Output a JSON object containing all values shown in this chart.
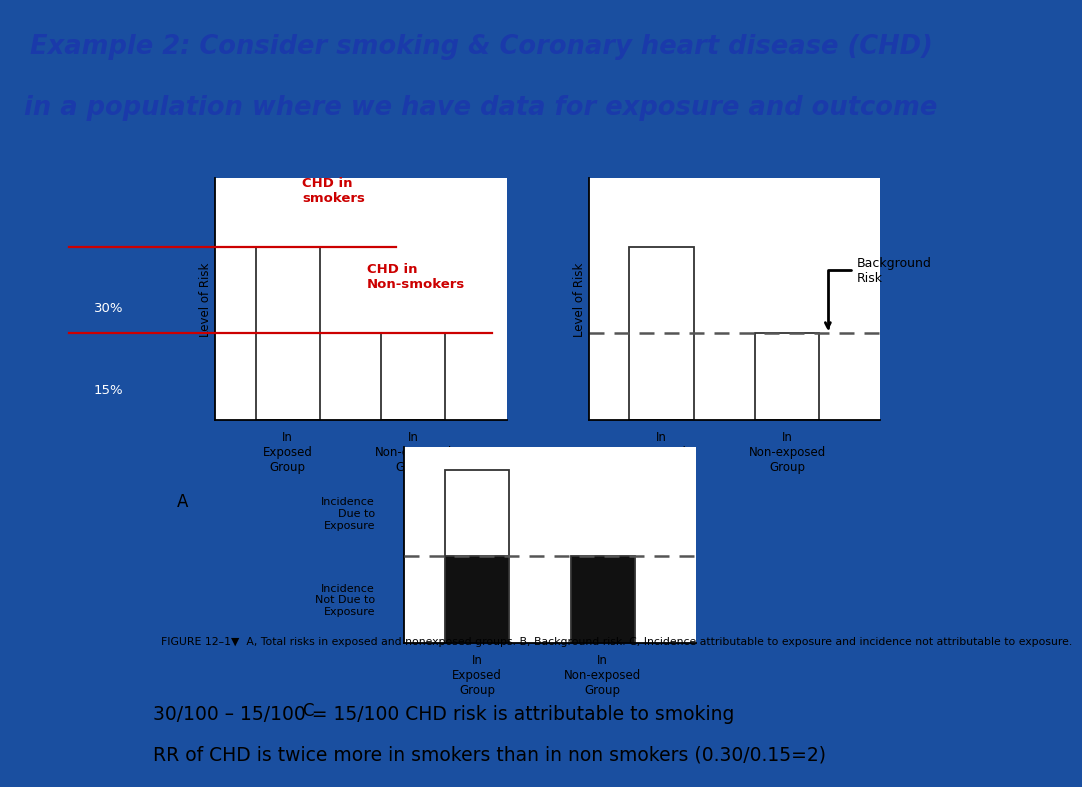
{
  "title_line1": "Example 2: Consider smoking & Coronary heart disease (CHD)",
  "title_line2": "in a population where we have data for exposure and outcome",
  "title_color": "#1a3aaa",
  "title_fontsize": 18.5,
  "bg_color": "#1a4fa0",
  "bottom_text1": "30/100 – 15/100 = 15/100 CHD risk is attributable to smoking",
  "bottom_text2": "RR of CHD is twice more in smokers than in non smokers (0.30/0.15=2)",
  "bottom_bg": "#c5d8f0",
  "figure_caption": "FIGURE 12–1▼  A, Total risks in exposed and nonexposed groups. B, Background risk. C, Incidence attributable to exposure and incidence not attributable to exposure.",
  "red_color": "#cc0000",
  "dash_color": "#555555",
  "bar_edge": "#333333",
  "bar_light": "#ffffff",
  "bar_dark": "#111111",
  "exposed_label": "In\nExposed\nGroup",
  "nonexposed_label": "In\nNon-exposed\nGroup",
  "ylabel_risk": "Level of Risk",
  "label_30pct": "30%",
  "label_15pct": "15%",
  "label_chd_smokers": "CHD in\nsmokers",
  "label_chd_nonsmokers": "CHD in\nNon-smokers",
  "label_bg_risk": "Background\nRisk",
  "label_inc_exp": "Incidence\nDue to\nExposure",
  "label_inc_noexp": "Incidence\nNot Due to\nExposure"
}
